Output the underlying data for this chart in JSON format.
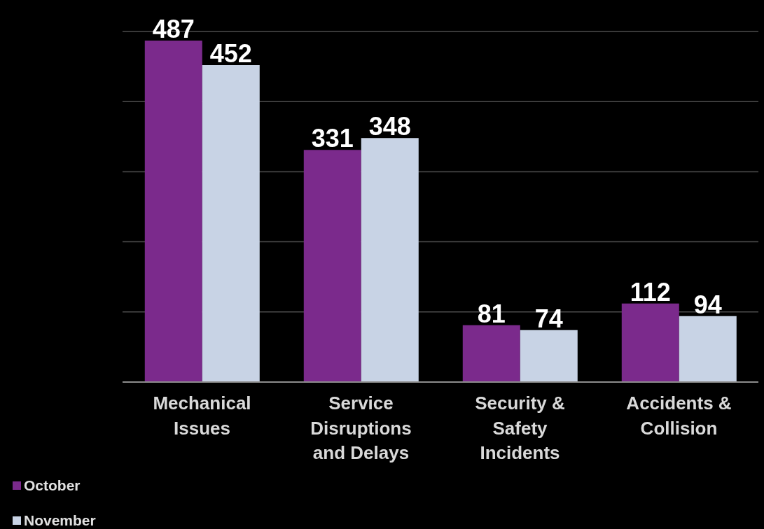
{
  "chart_data": {
    "type": "bar",
    "categories": [
      "Mechanical Issues",
      "Service Disruptions and Delays",
      "Security & Safety Incidents",
      "Accidents & Collision"
    ],
    "series": [
      {
        "name": "October",
        "color": "#7b2a8c",
        "values": [
          487,
          331,
          81,
          112
        ]
      },
      {
        "name": "November",
        "color": "#c8d3e5",
        "values": [
          452,
          348,
          74,
          94
        ]
      }
    ],
    "ylim": [
      0,
      500
    ],
    "tick_labels": "x",
    "grid": "y",
    "legend": "bottom left",
    "data_labels": true
  }
}
